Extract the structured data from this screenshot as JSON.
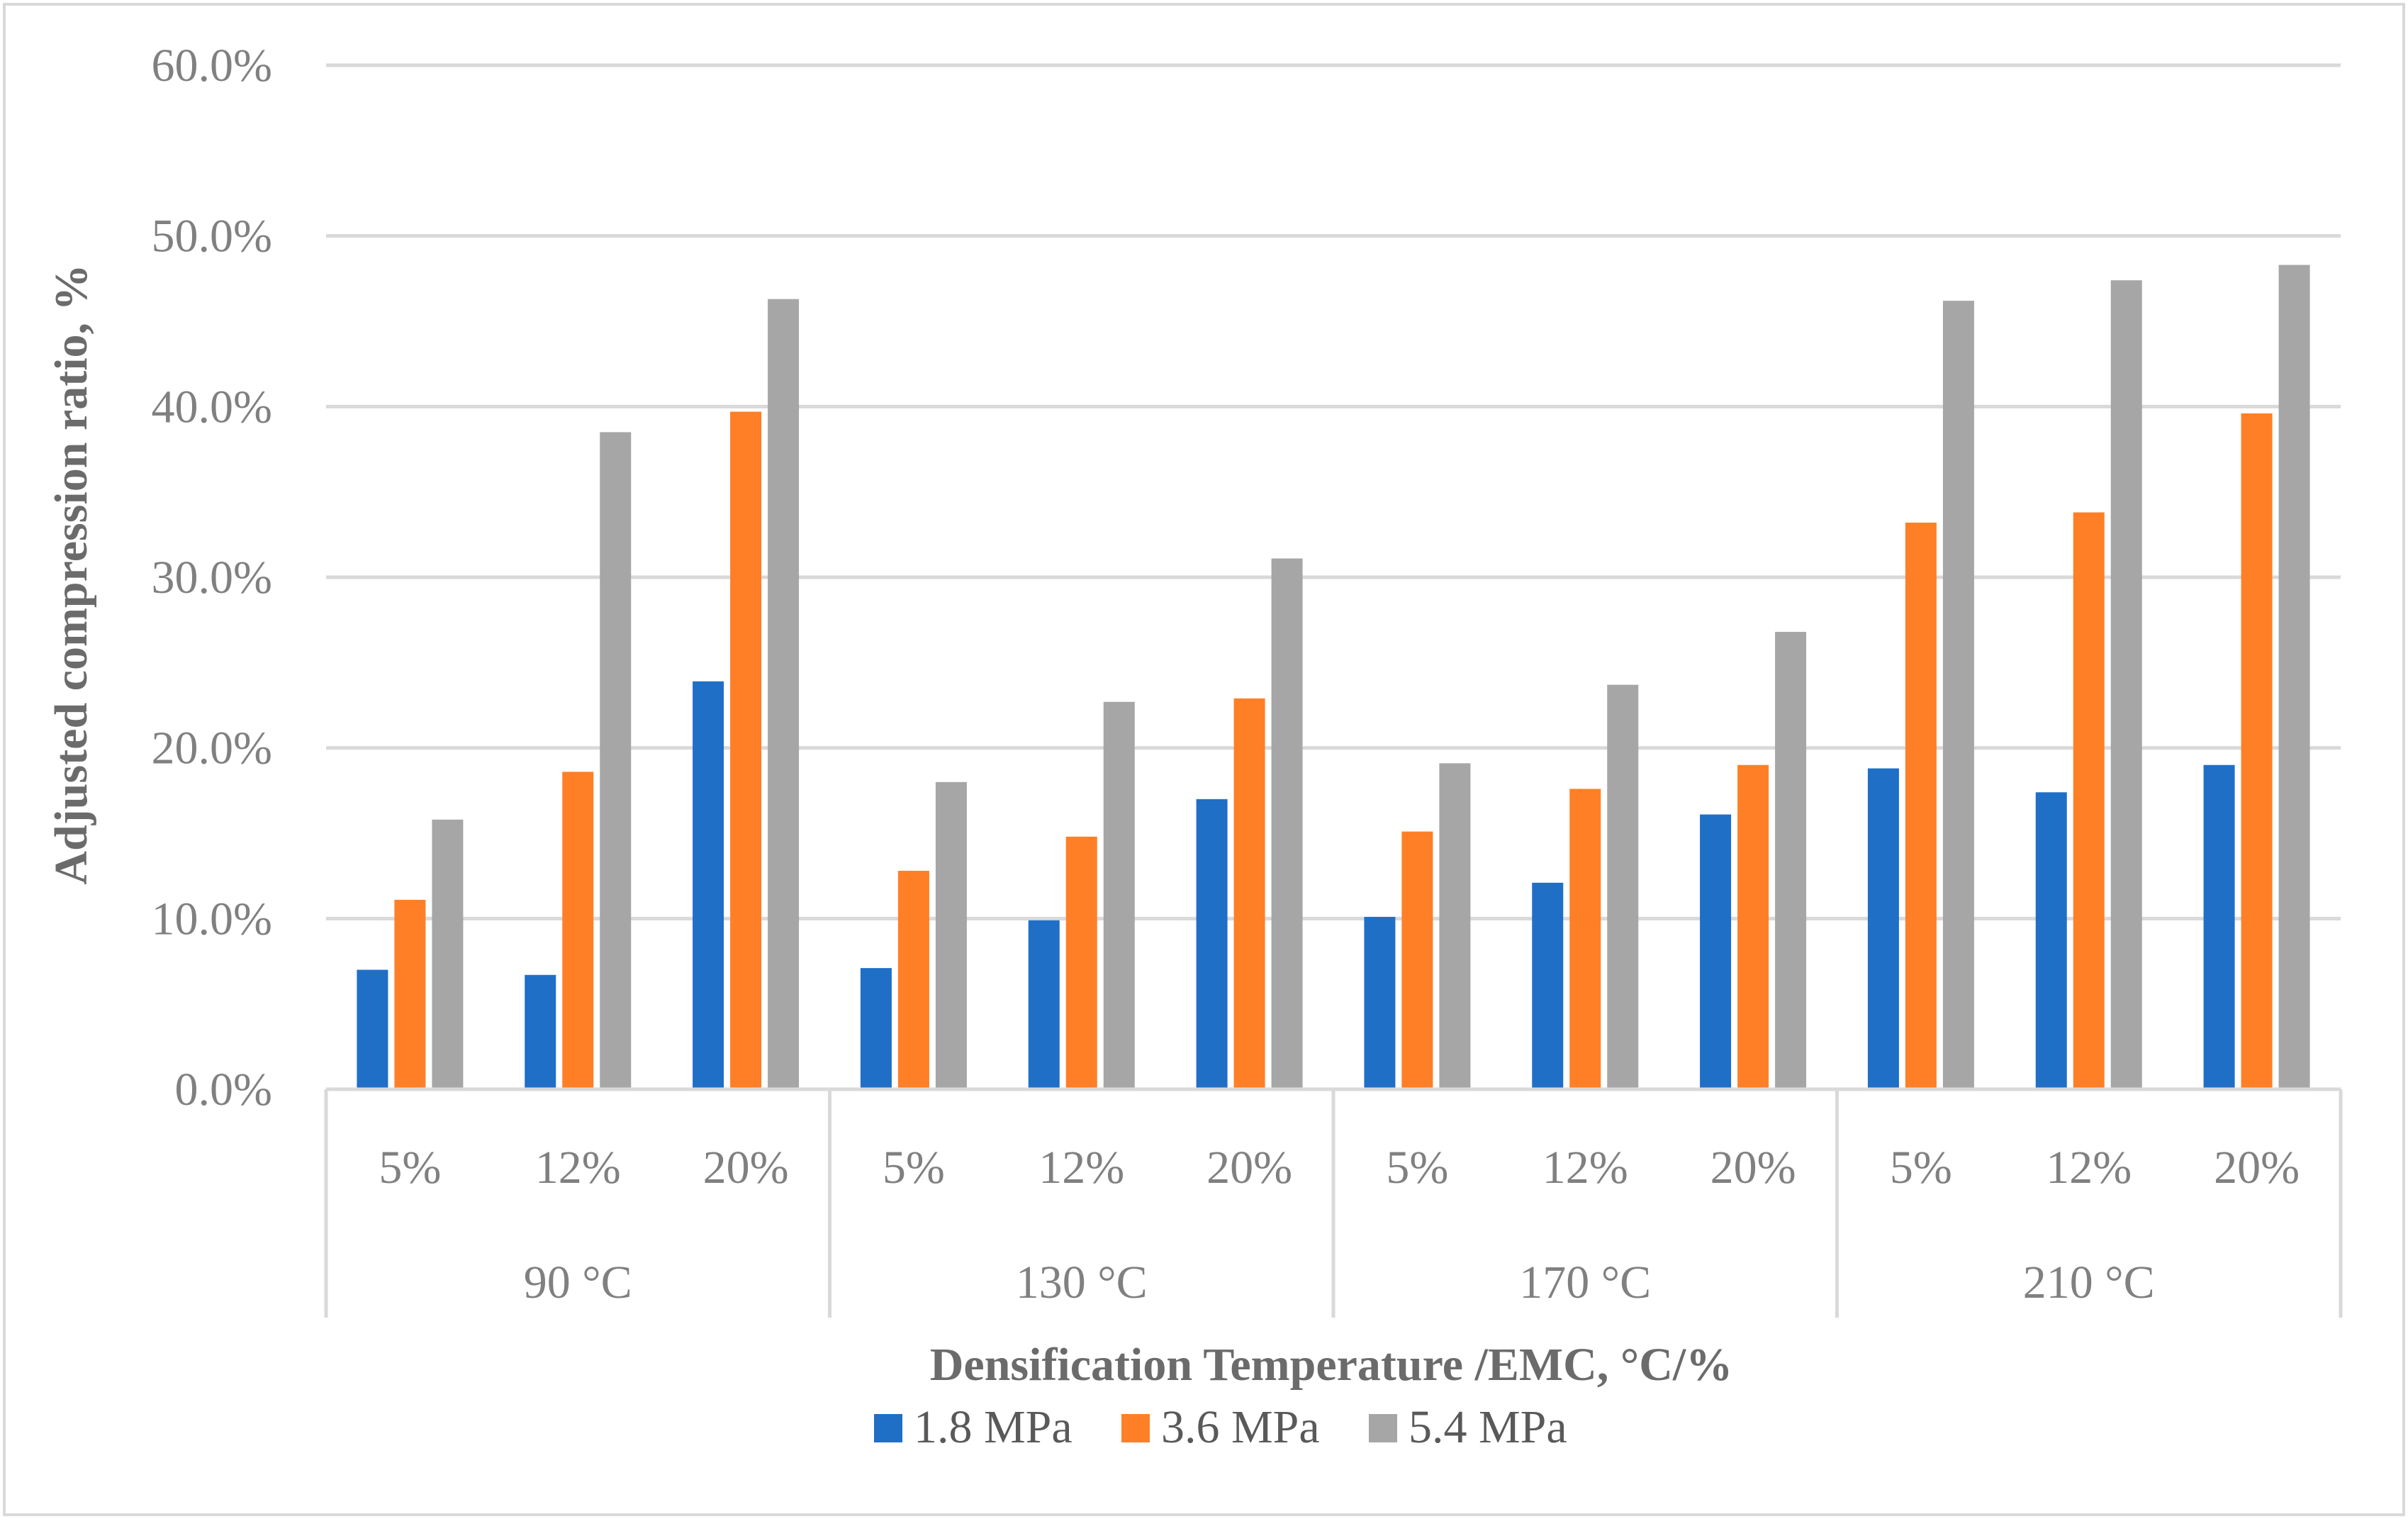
{
  "chart_data": {
    "type": "bar",
    "title": "",
    "xlabel": "Densification Temperature /EMC, °C/%",
    "ylabel": "Adjusted compression ratio, %",
    "ylim": [
      0,
      60
    ],
    "yticks": [
      "0.0%",
      "10.0%",
      "20.0%",
      "30.0%",
      "40.0%",
      "50.0%",
      "60.0%"
    ],
    "ytick_values": [
      0,
      10,
      20,
      30,
      40,
      50,
      60
    ],
    "groups": [
      "90 °C",
      "130 °C",
      "170 °C",
      "210 °C"
    ],
    "categories": [
      "5%",
      "12%",
      "20%",
      "5%",
      "12%",
      "20%",
      "5%",
      "12%",
      "20%",
      "5%",
      "12%",
      "20%"
    ],
    "series": [
      {
        "name": "1.8 MPa",
        "color": "#1f6fc7",
        "values": [
          7.0,
          6.7,
          23.9,
          7.1,
          9.9,
          17.0,
          10.1,
          12.1,
          16.1,
          18.8,
          17.4,
          19.0
        ]
      },
      {
        "name": "3.6 MPa",
        "color": "#ff7f27",
        "values": [
          11.1,
          18.6,
          39.7,
          12.8,
          14.8,
          22.9,
          15.1,
          17.6,
          19.0,
          33.2,
          33.8,
          39.6
        ]
      },
      {
        "name": "5.4 MPa",
        "color": "#a6a6a6",
        "values": [
          15.8,
          38.5,
          46.3,
          18.0,
          22.7,
          31.1,
          19.1,
          23.7,
          26.8,
          46.2,
          47.4,
          48.3
        ]
      }
    ],
    "grid": true,
    "legend_position": "bottom"
  }
}
